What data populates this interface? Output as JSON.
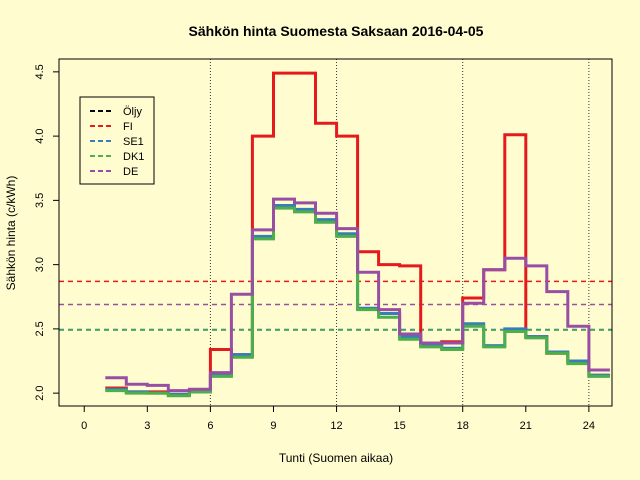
{
  "chart_data": {
    "type": "line",
    "title": "Sähkön hinta Suomesta Saksaan 2016-04-05",
    "xlabel": "Tunti (Suomen aikaa)",
    "ylabel": "Sähkön hinta (c/kWh)",
    "xlim": [
      -1.2,
      25.1
    ],
    "ylim": [
      1.9,
      4.6
    ],
    "x_ticks": [
      0,
      3,
      6,
      9,
      12,
      15,
      18,
      21,
      24
    ],
    "y_ticks": [
      "2.0",
      "2.5",
      "3.0",
      "3.5",
      "4.0",
      "4.5"
    ],
    "x_gridlines": [
      6,
      12,
      18,
      24
    ],
    "x_gridline_style": "dotted",
    "legend_position": "top-left",
    "hours": [
      1,
      2,
      3,
      4,
      5,
      6,
      7,
      8,
      9,
      10,
      11,
      12,
      13,
      14,
      15,
      16,
      17,
      18,
      19,
      20,
      21,
      22,
      23,
      24
    ],
    "series": [
      {
        "name": "FI",
        "color": "#e41a1c",
        "values": [
          2.04,
          2.01,
          2.01,
          1.99,
          2.02,
          2.34,
          2.3,
          4.0,
          4.49,
          4.49,
          4.1,
          4.0,
          3.1,
          3.0,
          2.99,
          2.38,
          2.4,
          2.74,
          2.96,
          4.01,
          2.44,
          2.31,
          2.24,
          2.14
        ]
      },
      {
        "name": "SE1",
        "color": "#377eb8",
        "values": [
          2.03,
          2.01,
          2.0,
          1.99,
          2.01,
          2.14,
          2.3,
          3.22,
          3.46,
          3.43,
          3.35,
          3.24,
          2.66,
          2.62,
          2.44,
          2.37,
          2.35,
          2.54,
          2.37,
          2.5,
          2.44,
          2.32,
          2.25,
          2.14
        ]
      },
      {
        "name": "DK1",
        "color": "#4daf4a",
        "values": [
          2.02,
          2.0,
          2.0,
          1.98,
          2.01,
          2.13,
          2.28,
          3.2,
          3.44,
          3.41,
          3.33,
          3.22,
          2.65,
          2.59,
          2.42,
          2.36,
          2.34,
          2.52,
          2.36,
          2.48,
          2.43,
          2.31,
          2.23,
          2.13
        ]
      },
      {
        "name": "DE",
        "color": "#984ea3",
        "values": [
          2.12,
          2.07,
          2.06,
          2.02,
          2.03,
          2.16,
          2.77,
          3.27,
          3.51,
          3.48,
          3.4,
          3.28,
          2.94,
          2.65,
          2.46,
          2.39,
          2.39,
          2.7,
          2.96,
          3.05,
          2.99,
          2.79,
          2.52,
          2.18
        ]
      }
    ],
    "reference_lines": [
      {
        "name": "Öljy",
        "color": "#000000",
        "value": null
      },
      {
        "name": "FI",
        "color": "#e41a1c",
        "value": 2.87
      },
      {
        "name": "SE1",
        "color": "#377eb8",
        "value": 2.495
      },
      {
        "name": "DK1",
        "color": "#4daf4a",
        "value": 2.49
      },
      {
        "name": "DE",
        "color": "#984ea3",
        "value": 2.69
      }
    ],
    "legend": [
      "Öljy",
      "FI",
      "SE1",
      "DK1",
      "DE"
    ]
  }
}
